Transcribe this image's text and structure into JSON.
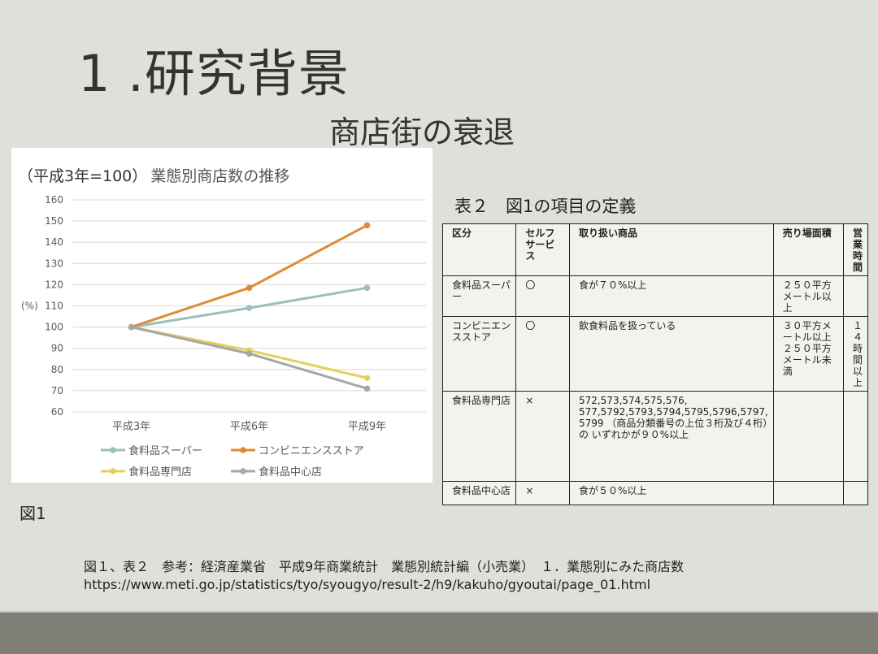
{
  "slide": {
    "title": "1 .研究背景",
    "subtitle": "商店街の衰退",
    "fig_label": "図1",
    "table_title": "表２　図1の項目の定義",
    "ref_line1": "図１、表２　参考：経済産業省　平成9年商業統計　業態別統計編（小売業）　１．業態別にみた商店数",
    "ref_line2": "https://www.meti.go.jp/statistics/tyo/syougyo/result-2/h9/kakuho/gyoutai/page_01.html"
  },
  "chart_data": {
    "type": "line",
    "title_prefix": "（平成3年=100）",
    "title": "業態別商店数の推移",
    "ylabel": "(%)",
    "ylim": [
      60,
      160
    ],
    "yticks": [
      60,
      70,
      80,
      90,
      100,
      110,
      120,
      130,
      140,
      150,
      160
    ],
    "categories": [
      "平成3年",
      "平成6年",
      "平成9年"
    ],
    "grid": true,
    "legend_position": "bottom",
    "series": [
      {
        "name": "食料品スーパー",
        "color": "#9bbfbf",
        "values": [
          100,
          109,
          118.5
        ]
      },
      {
        "name": "コンビニエンスストア",
        "color": "#e08a33",
        "values": [
          100,
          118.5,
          148
        ]
      },
      {
        "name": "食料品専門店",
        "color": "#e6cf5c",
        "values": [
          100,
          89,
          76
        ]
      },
      {
        "name": "食料品中心店",
        "color": "#a6a6a6",
        "values": [
          100,
          87.5,
          71
        ]
      }
    ]
  },
  "table": {
    "headers": [
      "区分",
      "セルフ\nサービス",
      "取り扱い商品",
      "売り場面積",
      "営業時間"
    ],
    "rows": [
      [
        "食料品スーパー",
        "〇",
        "食が７０%以上",
        "２５０平方メートル以上",
        ""
      ],
      [
        "コンビニエンスストア",
        "〇",
        "飲食料品を扱っている",
        "３０平方メートル以上２５０平方メートル未満",
        "１４時間以上"
      ],
      [
        "食料品専門店",
        "×",
        "572,573,574,575,576, 577,5792,5793,5794,5795,5796,5797, 5799 （商品分類番号の上位３桁及び４桁）の いずれかが９０%以上",
        "",
        ""
      ],
      [
        "食料品中心店",
        "×",
        "食が５０%以上",
        "",
        ""
      ]
    ]
  }
}
